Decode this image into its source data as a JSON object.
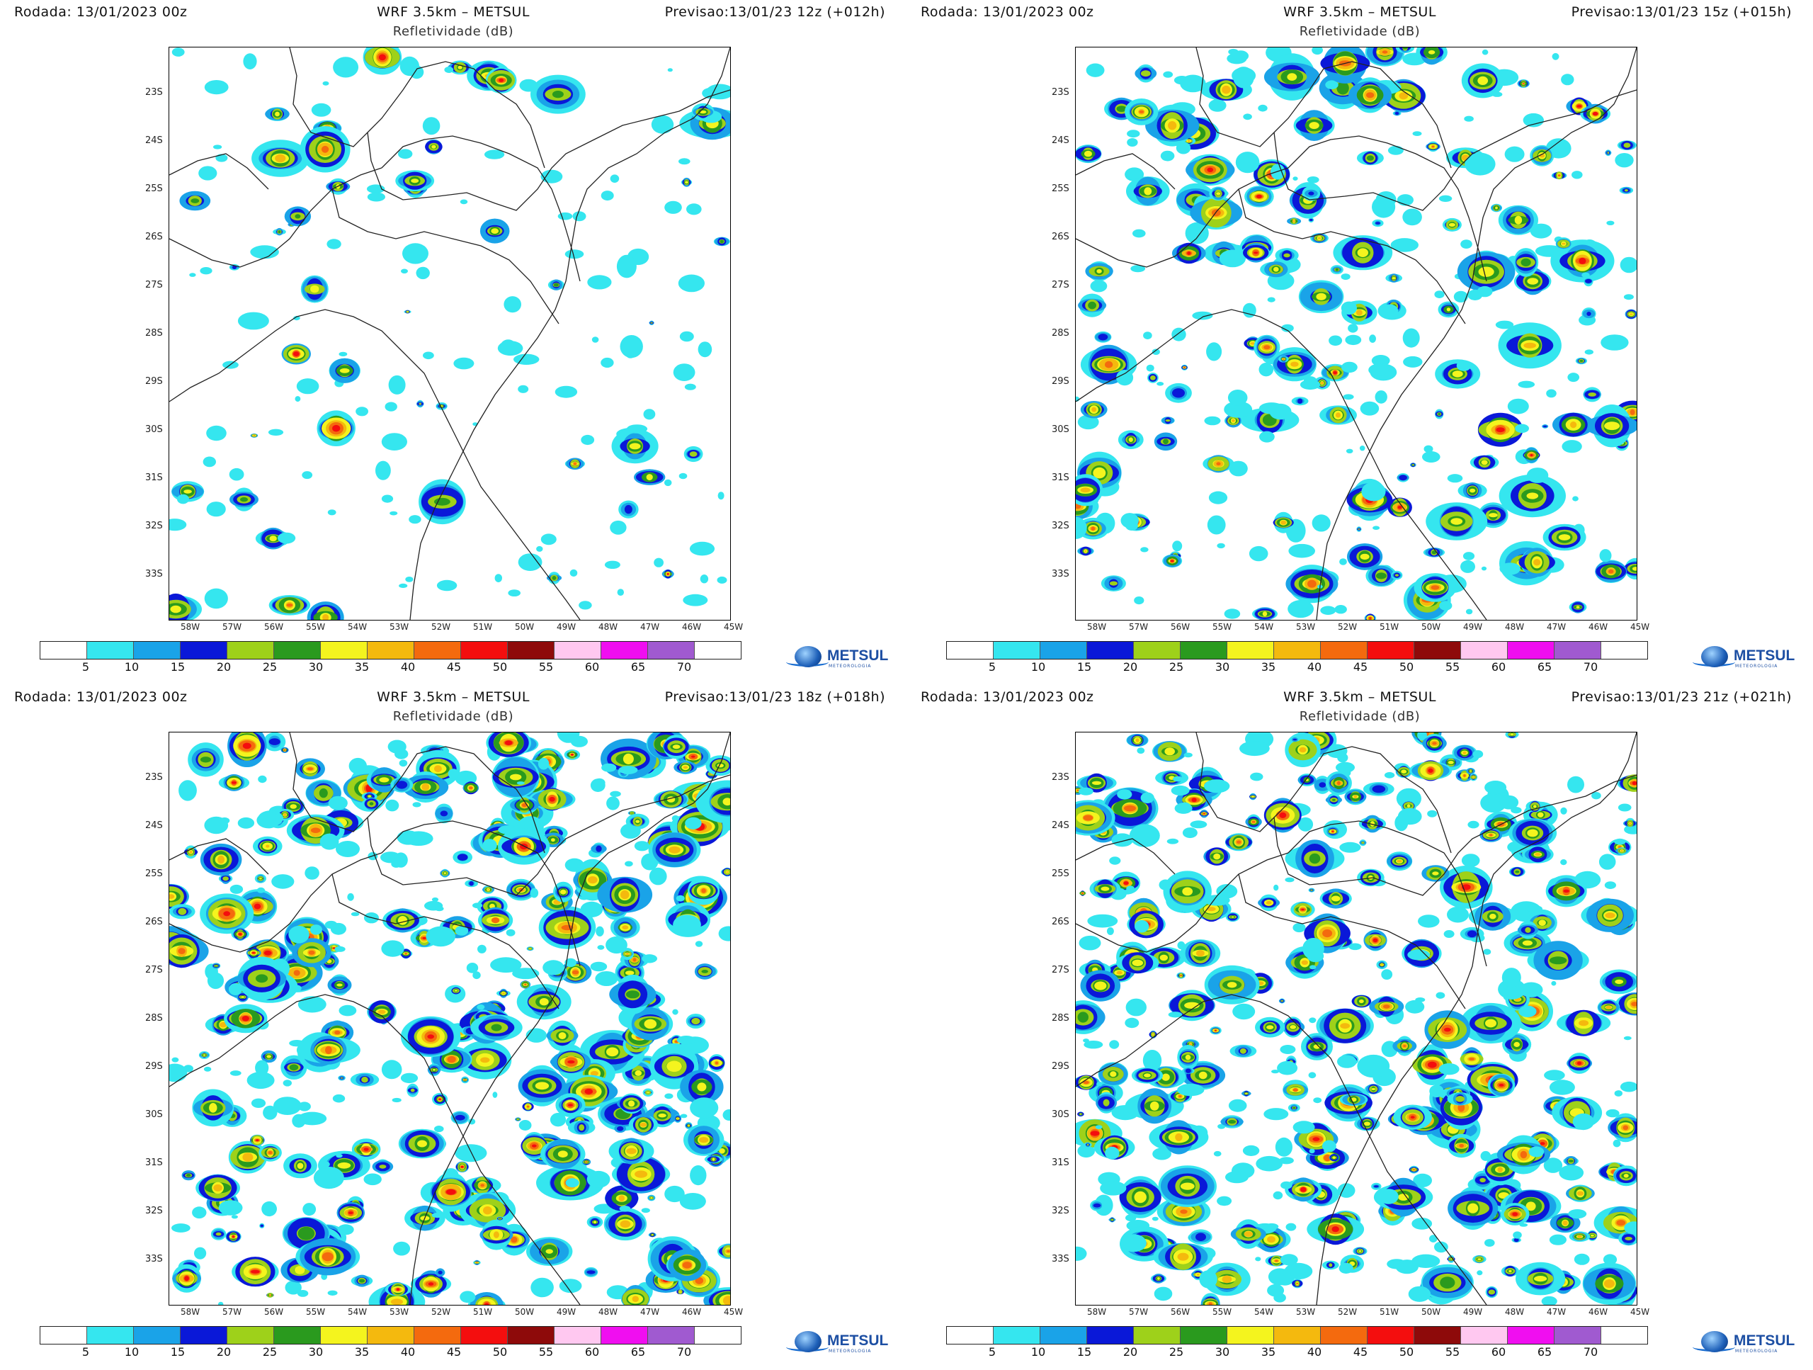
{
  "panels": [
    {
      "run": "Rodada: 13/01/2023 00z",
      "title": "WRF 3.5km – METSUL",
      "subtitle": "Refletividade (dB)",
      "forecast": "Previsao:13/01/23 12z (+012h)",
      "intensity": "low"
    },
    {
      "run": "Rodada: 13/01/2023 00z",
      "title": "WRF 3.5km – METSUL",
      "subtitle": "Refletividade (dB)",
      "forecast": "Previsao:13/01/23 15z (+015h)",
      "intensity": "medium"
    },
    {
      "run": "Rodada: 13/01/2023 00z",
      "title": "WRF 3.5km – METSUL",
      "subtitle": "Refletividade (dB)",
      "forecast": "Previsao:13/01/23 18z (+018h)",
      "intensity": "high"
    },
    {
      "run": "Rodada: 13/01/2023 00z",
      "title": "WRF 3.5km – METSUL",
      "subtitle": "Refletividade (dB)",
      "forecast": "Previsao:13/01/23 21z (+021h)",
      "intensity": "high"
    }
  ],
  "lat_labels": [
    "23S",
    "24S",
    "25S",
    "26S",
    "27S",
    "28S",
    "29S",
    "30S",
    "31S",
    "32S",
    "33S"
  ],
  "lon_labels": [
    "58W",
    "57W",
    "56W",
    "55W",
    "54W",
    "53W",
    "52W",
    "51W",
    "50W",
    "49W",
    "48W",
    "47W",
    "46W",
    "45W"
  ],
  "colorbar": {
    "colors": [
      "#ffffff",
      "#35e6ef",
      "#1aa3e8",
      "#0a18d8",
      "#9ed11a",
      "#2a9a1e",
      "#f4f41e",
      "#f4b90e",
      "#f46a0e",
      "#f40e0e",
      "#8e0a0a",
      "#ffc8f0",
      "#f00ef0",
      "#a05ad0",
      "#ffffff"
    ],
    "labels": [
      "5",
      "10",
      "15",
      "20",
      "25",
      "30",
      "35",
      "40",
      "45",
      "50",
      "55",
      "60",
      "65",
      "70"
    ]
  },
  "logo": {
    "text": "METSUL",
    "tagline": "METEOROLOGIA"
  }
}
